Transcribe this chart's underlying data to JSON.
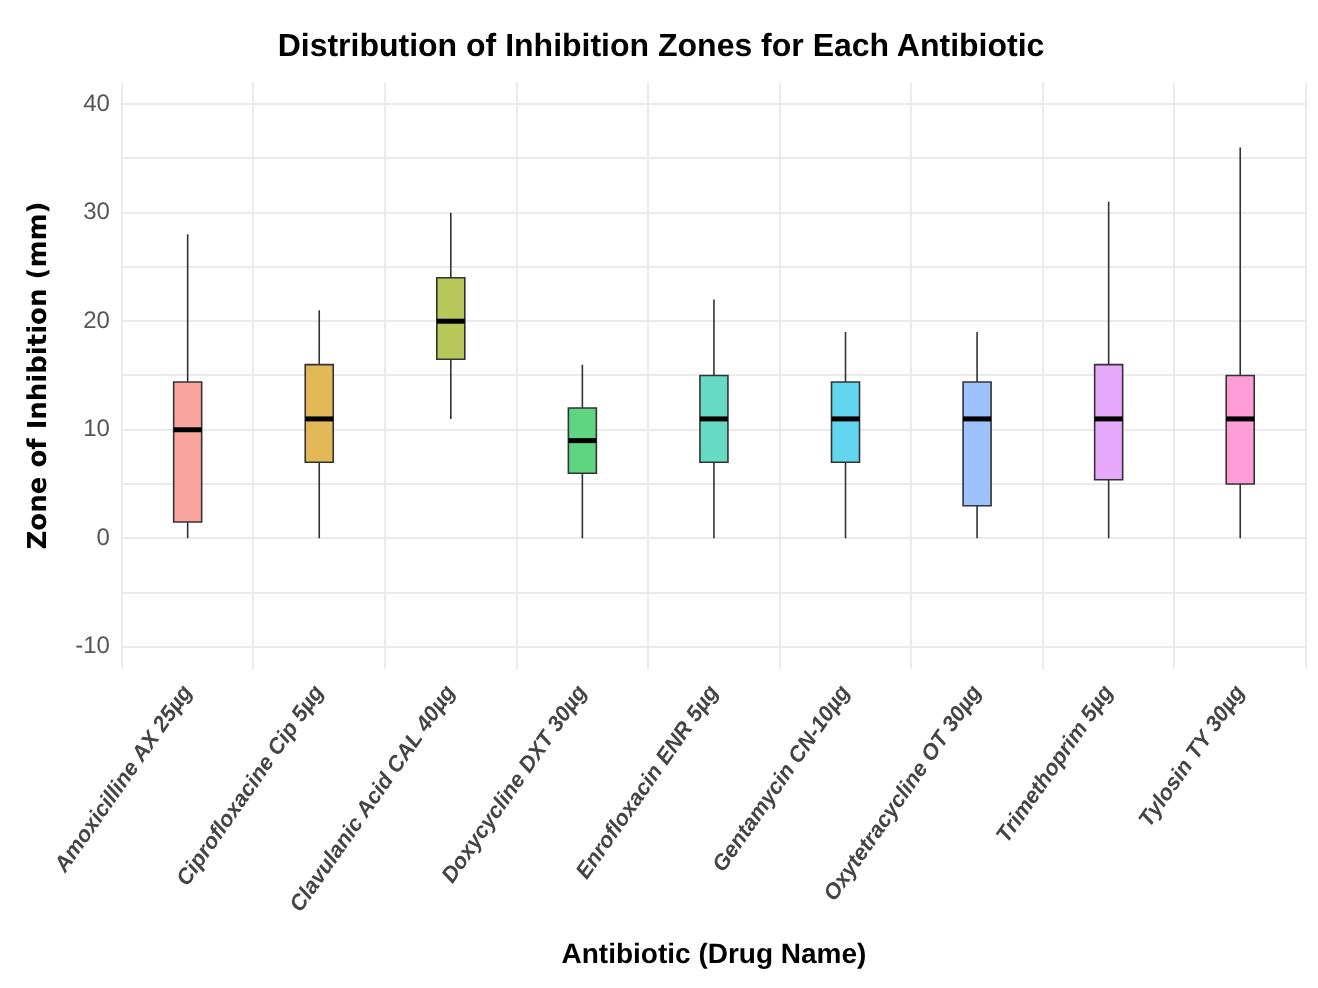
{
  "chart_data": {
    "type": "box",
    "title": "Distribution of Inhibition Zones for Each Antibiotic",
    "xlabel": "Antibiotic (Drug Name)",
    "ylabel": "Zone of Inhibition (mm)",
    "categories": [
      "Amoxicilline AX 25µg",
      "Ciprofloxacine Cip 5µg",
      "Clavulanic Acid CAL 40µg",
      "Doxycycline DXT 30µg",
      "Enrofloxacin ENR 5µg",
      "Gentamycin CN-10µg",
      "Oxytetracycline OT 30µg",
      "Trimethoprim 5µg",
      "Tylosin TY 30µg"
    ],
    "colors": [
      "#fba5a0",
      "#e3b859",
      "#b8c75a",
      "#5fd481",
      "#66dac4",
      "#62d6ee",
      "#9ec2ff",
      "#e8a9fd",
      "#ff9dd8"
    ],
    "boxes": [
      {
        "low": 0,
        "q1": 1.5,
        "median": 10,
        "q3": 14.4,
        "high": 28
      },
      {
        "low": 0,
        "q1": 7,
        "median": 11,
        "q3": 16,
        "high": 21
      },
      {
        "low": 11,
        "q1": 16.5,
        "median": 20,
        "q3": 24,
        "high": 30
      },
      {
        "low": 0,
        "q1": 6,
        "median": 9,
        "q3": 12,
        "high": 16
      },
      {
        "low": 0,
        "q1": 7,
        "median": 11,
        "q3": 15,
        "high": 22
      },
      {
        "low": 0,
        "q1": 7,
        "median": 11,
        "q3": 14.4,
        "high": 19
      },
      {
        "low": 0,
        "q1": 3,
        "median": 11,
        "q3": 14.4,
        "high": 19
      },
      {
        "low": 0,
        "q1": 5.4,
        "median": 11,
        "q3": 16,
        "high": 31
      },
      {
        "low": 0,
        "q1": 5,
        "median": 11,
        "q3": 15,
        "high": 36
      }
    ],
    "ylim": [
      -12,
      42
    ],
    "yticks": [
      -10,
      {
        "value": -5,
        "label": null
      },
      0,
      {
        "value": 5,
        "label": null
      },
      10,
      {
        "value": 15,
        "label": null
      },
      20,
      {
        "value": 25,
        "label": null
      },
      30,
      {
        "value": 35,
        "label": null
      },
      40
    ],
    "grid": true,
    "legend": false
  }
}
